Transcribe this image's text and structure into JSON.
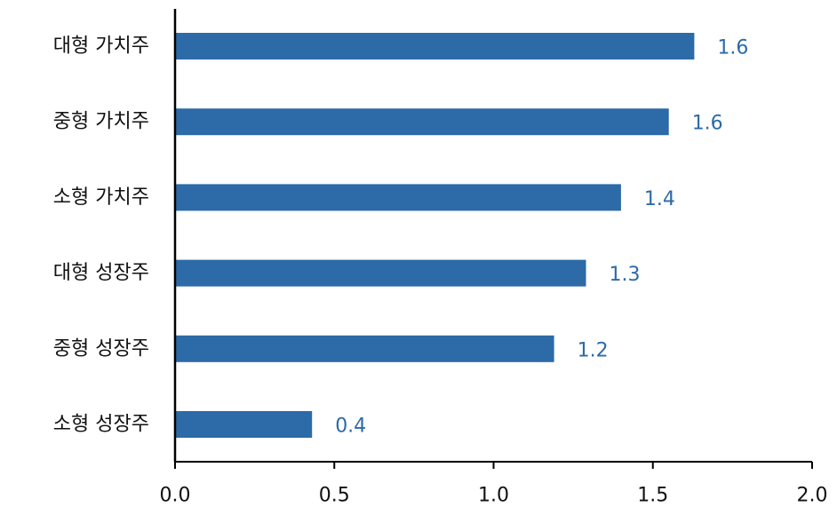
{
  "chart_data": {
    "type": "bar",
    "orientation": "horizontal",
    "categories": [
      "대형 가치주",
      "중형 가치주",
      "소형 가치주",
      "대형 성장주",
      "중형 성장주",
      "소형 성장주"
    ],
    "values": [
      1.63,
      1.55,
      1.4,
      1.29,
      1.19,
      0.43
    ],
    "value_labels": [
      "1.6",
      "1.6",
      "1.4",
      "1.3",
      "1.2",
      "0.4"
    ],
    "xlim": [
      0,
      2.0
    ],
    "xticks": [
      0,
      0.5,
      1.0,
      1.5,
      2.0
    ],
    "xtick_labels": [
      "0.0",
      "0.5",
      "1.0",
      "1.5",
      "2.0"
    ],
    "title": "",
    "xlabel": "",
    "ylabel": "",
    "grid": false,
    "colors": {
      "bar": "#2c6aa8",
      "value_label": "#2c6aa8",
      "axis": "#000000"
    }
  }
}
